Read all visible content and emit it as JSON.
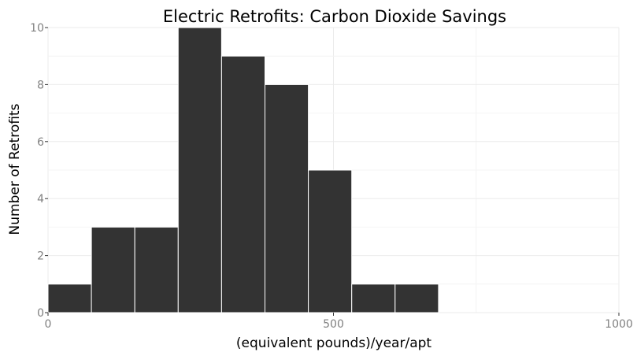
{
  "chart_data": {
    "type": "bar",
    "title": "Electric Retrofits: Carbon Dioxide Savings",
    "xlabel": "(equivalent pounds)/year/apt",
    "ylabel": "Number of Retrofits",
    "xlim": [
      0,
      1000
    ],
    "ylim": [
      0,
      10
    ],
    "x_ticks": [
      0,
      500,
      1000
    ],
    "y_ticks": [
      0,
      2,
      4,
      6,
      8,
      10
    ],
    "bin_width": 76,
    "bins": [
      {
        "start": 0,
        "end": 76,
        "value": 1
      },
      {
        "start": 76,
        "end": 152,
        "value": 3
      },
      {
        "start": 152,
        "end": 228,
        "value": 3
      },
      {
        "start": 228,
        "end": 304,
        "value": 10
      },
      {
        "start": 304,
        "end": 380,
        "value": 9
      },
      {
        "start": 380,
        "end": 456,
        "value": 8
      },
      {
        "start": 456,
        "end": 532,
        "value": 5
      },
      {
        "start": 532,
        "end": 608,
        "value": 1
      },
      {
        "start": 608,
        "end": 684,
        "value": 1
      }
    ],
    "grid": true,
    "legend": "none",
    "bar_color": "#333333"
  }
}
